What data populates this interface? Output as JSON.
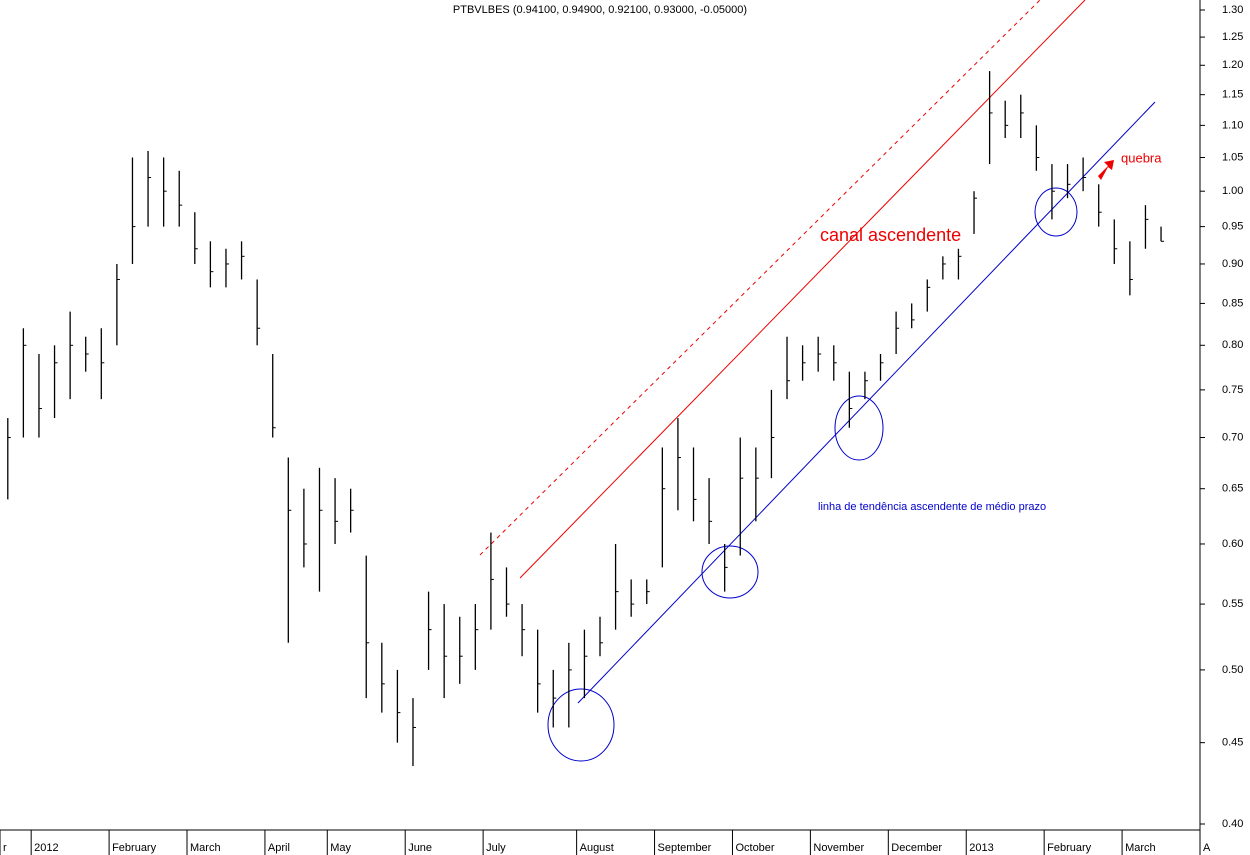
{
  "chart_data": {
    "type": "ohlc",
    "title": "PTBVLBES (0.94100, 0.94900, 0.92100, 0.93000, -0.05000)",
    "categories": [
      "r",
      null,
      "2012",
      null,
      null,
      null,
      null,
      "February",
      null,
      null,
      null,
      null,
      "March",
      null,
      null,
      null,
      null,
      "April",
      null,
      null,
      null,
      "May",
      null,
      null,
      null,
      null,
      "June",
      null,
      null,
      null,
      null,
      "July",
      null,
      null,
      null,
      null,
      null,
      "August",
      null,
      null,
      null,
      null,
      "September",
      null,
      null,
      null,
      null,
      "October",
      null,
      null,
      null,
      null,
      "November",
      null,
      null,
      null,
      null,
      "December",
      null,
      null,
      null,
      null,
      "2013",
      null,
      null,
      null,
      null,
      "February",
      null,
      null,
      null,
      null,
      "March",
      null,
      null,
      null,
      null,
      "A"
    ],
    "high": [
      0.72,
      0.82,
      0.79,
      0.8,
      0.84,
      0.81,
      0.82,
      0.9,
      1.05,
      1.06,
      1.05,
      1.03,
      0.97,
      0.93,
      0.92,
      0.93,
      0.88,
      0.79,
      0.68,
      0.65,
      0.67,
      0.66,
      0.65,
      0.59,
      0.52,
      0.5,
      0.48,
      0.56,
      0.55,
      0.54,
      0.55,
      0.61,
      0.58,
      0.55,
      0.53,
      0.5,
      0.52,
      0.53,
      0.54,
      0.6,
      0.57,
      0.57,
      0.69,
      0.72,
      0.69,
      0.66,
      0.6,
      0.7,
      0.69,
      0.75,
      0.81,
      0.8,
      0.81,
      0.8,
      0.77,
      0.77,
      0.79,
      0.84,
      0.85,
      0.88,
      0.91,
      0.92,
      1.0,
      1.19,
      1.14,
      1.15,
      1.1,
      1.04,
      1.04,
      1.05,
      1.01,
      0.96,
      0.93,
      0.98,
      0.95,
      null,
      null,
      null
    ],
    "low": [
      0.64,
      0.7,
      0.7,
      0.72,
      0.74,
      0.77,
      0.74,
      0.8,
      0.9,
      0.95,
      0.95,
      0.95,
      0.9,
      0.87,
      0.87,
      0.88,
      0.8,
      0.7,
      0.52,
      0.58,
      0.56,
      0.6,
      0.61,
      0.48,
      0.47,
      0.45,
      0.435,
      0.5,
      0.48,
      0.49,
      0.5,
      0.53,
      0.54,
      0.51,
      0.47,
      0.46,
      0.46,
      0.48,
      0.51,
      0.53,
      0.54,
      0.55,
      0.58,
      0.63,
      0.62,
      0.6,
      0.56,
      0.59,
      0.62,
      0.66,
      0.74,
      0.76,
      0.77,
      0.76,
      0.71,
      0.74,
      0.76,
      0.79,
      0.82,
      0.84,
      0.88,
      0.88,
      0.94,
      1.04,
      1.08,
      1.08,
      1.03,
      0.96,
      0.99,
      1.0,
      0.95,
      0.9,
      0.86,
      0.92,
      0.93,
      null,
      null,
      null
    ],
    "close": [
      0.7,
      0.8,
      0.73,
      0.78,
      0.8,
      0.79,
      0.78,
      0.88,
      0.95,
      1.02,
      1.0,
      0.98,
      0.92,
      0.89,
      0.9,
      0.91,
      0.82,
      0.71,
      0.63,
      0.6,
      0.63,
      0.62,
      0.63,
      0.52,
      0.49,
      0.47,
      0.46,
      0.53,
      0.51,
      0.51,
      0.53,
      0.57,
      0.55,
      0.53,
      0.49,
      0.48,
      0.5,
      0.51,
      0.52,
      0.56,
      0.55,
      0.56,
      0.65,
      0.68,
      0.64,
      0.62,
      0.58,
      0.66,
      0.66,
      0.7,
      0.76,
      0.78,
      0.79,
      0.78,
      0.73,
      0.76,
      0.78,
      0.82,
      0.83,
      0.87,
      0.9,
      0.91,
      0.99,
      1.12,
      1.1,
      1.12,
      1.05,
      1.0,
      1.01,
      1.02,
      0.97,
      0.92,
      0.88,
      0.96,
      0.93,
      null,
      null,
      null
    ],
    "color": "#000000",
    "log": true,
    "ylim": [
      0.4,
      1.3
    ],
    "yticks": [
      {
        "value": 0.4,
        "label": "0.40"
      },
      0.45,
      {
        "value": 0.5,
        "label": "0.50"
      },
      0.55,
      {
        "value": 0.6,
        "label": "0.60"
      },
      0.65,
      {
        "value": 0.7,
        "label": "0.70"
      },
      0.75,
      {
        "value": 0.8,
        "label": "0.80"
      },
      0.85,
      {
        "value": 0.9,
        "label": "0.90"
      },
      0.95,
      {
        "value": 1.0,
        "label": "1.00"
      },
      1.05,
      {
        "value": 1.1,
        "label": "1.10"
      },
      1.15,
      {
        "value": 1.2,
        "label": "1.20"
      },
      1.25,
      {
        "value": 1.3,
        "label": "1.30"
      }
    ],
    "annotations": [
      "canal ascendente",
      "linha de tendência ascendente de médio prazo",
      "quebra"
    ]
  }
}
